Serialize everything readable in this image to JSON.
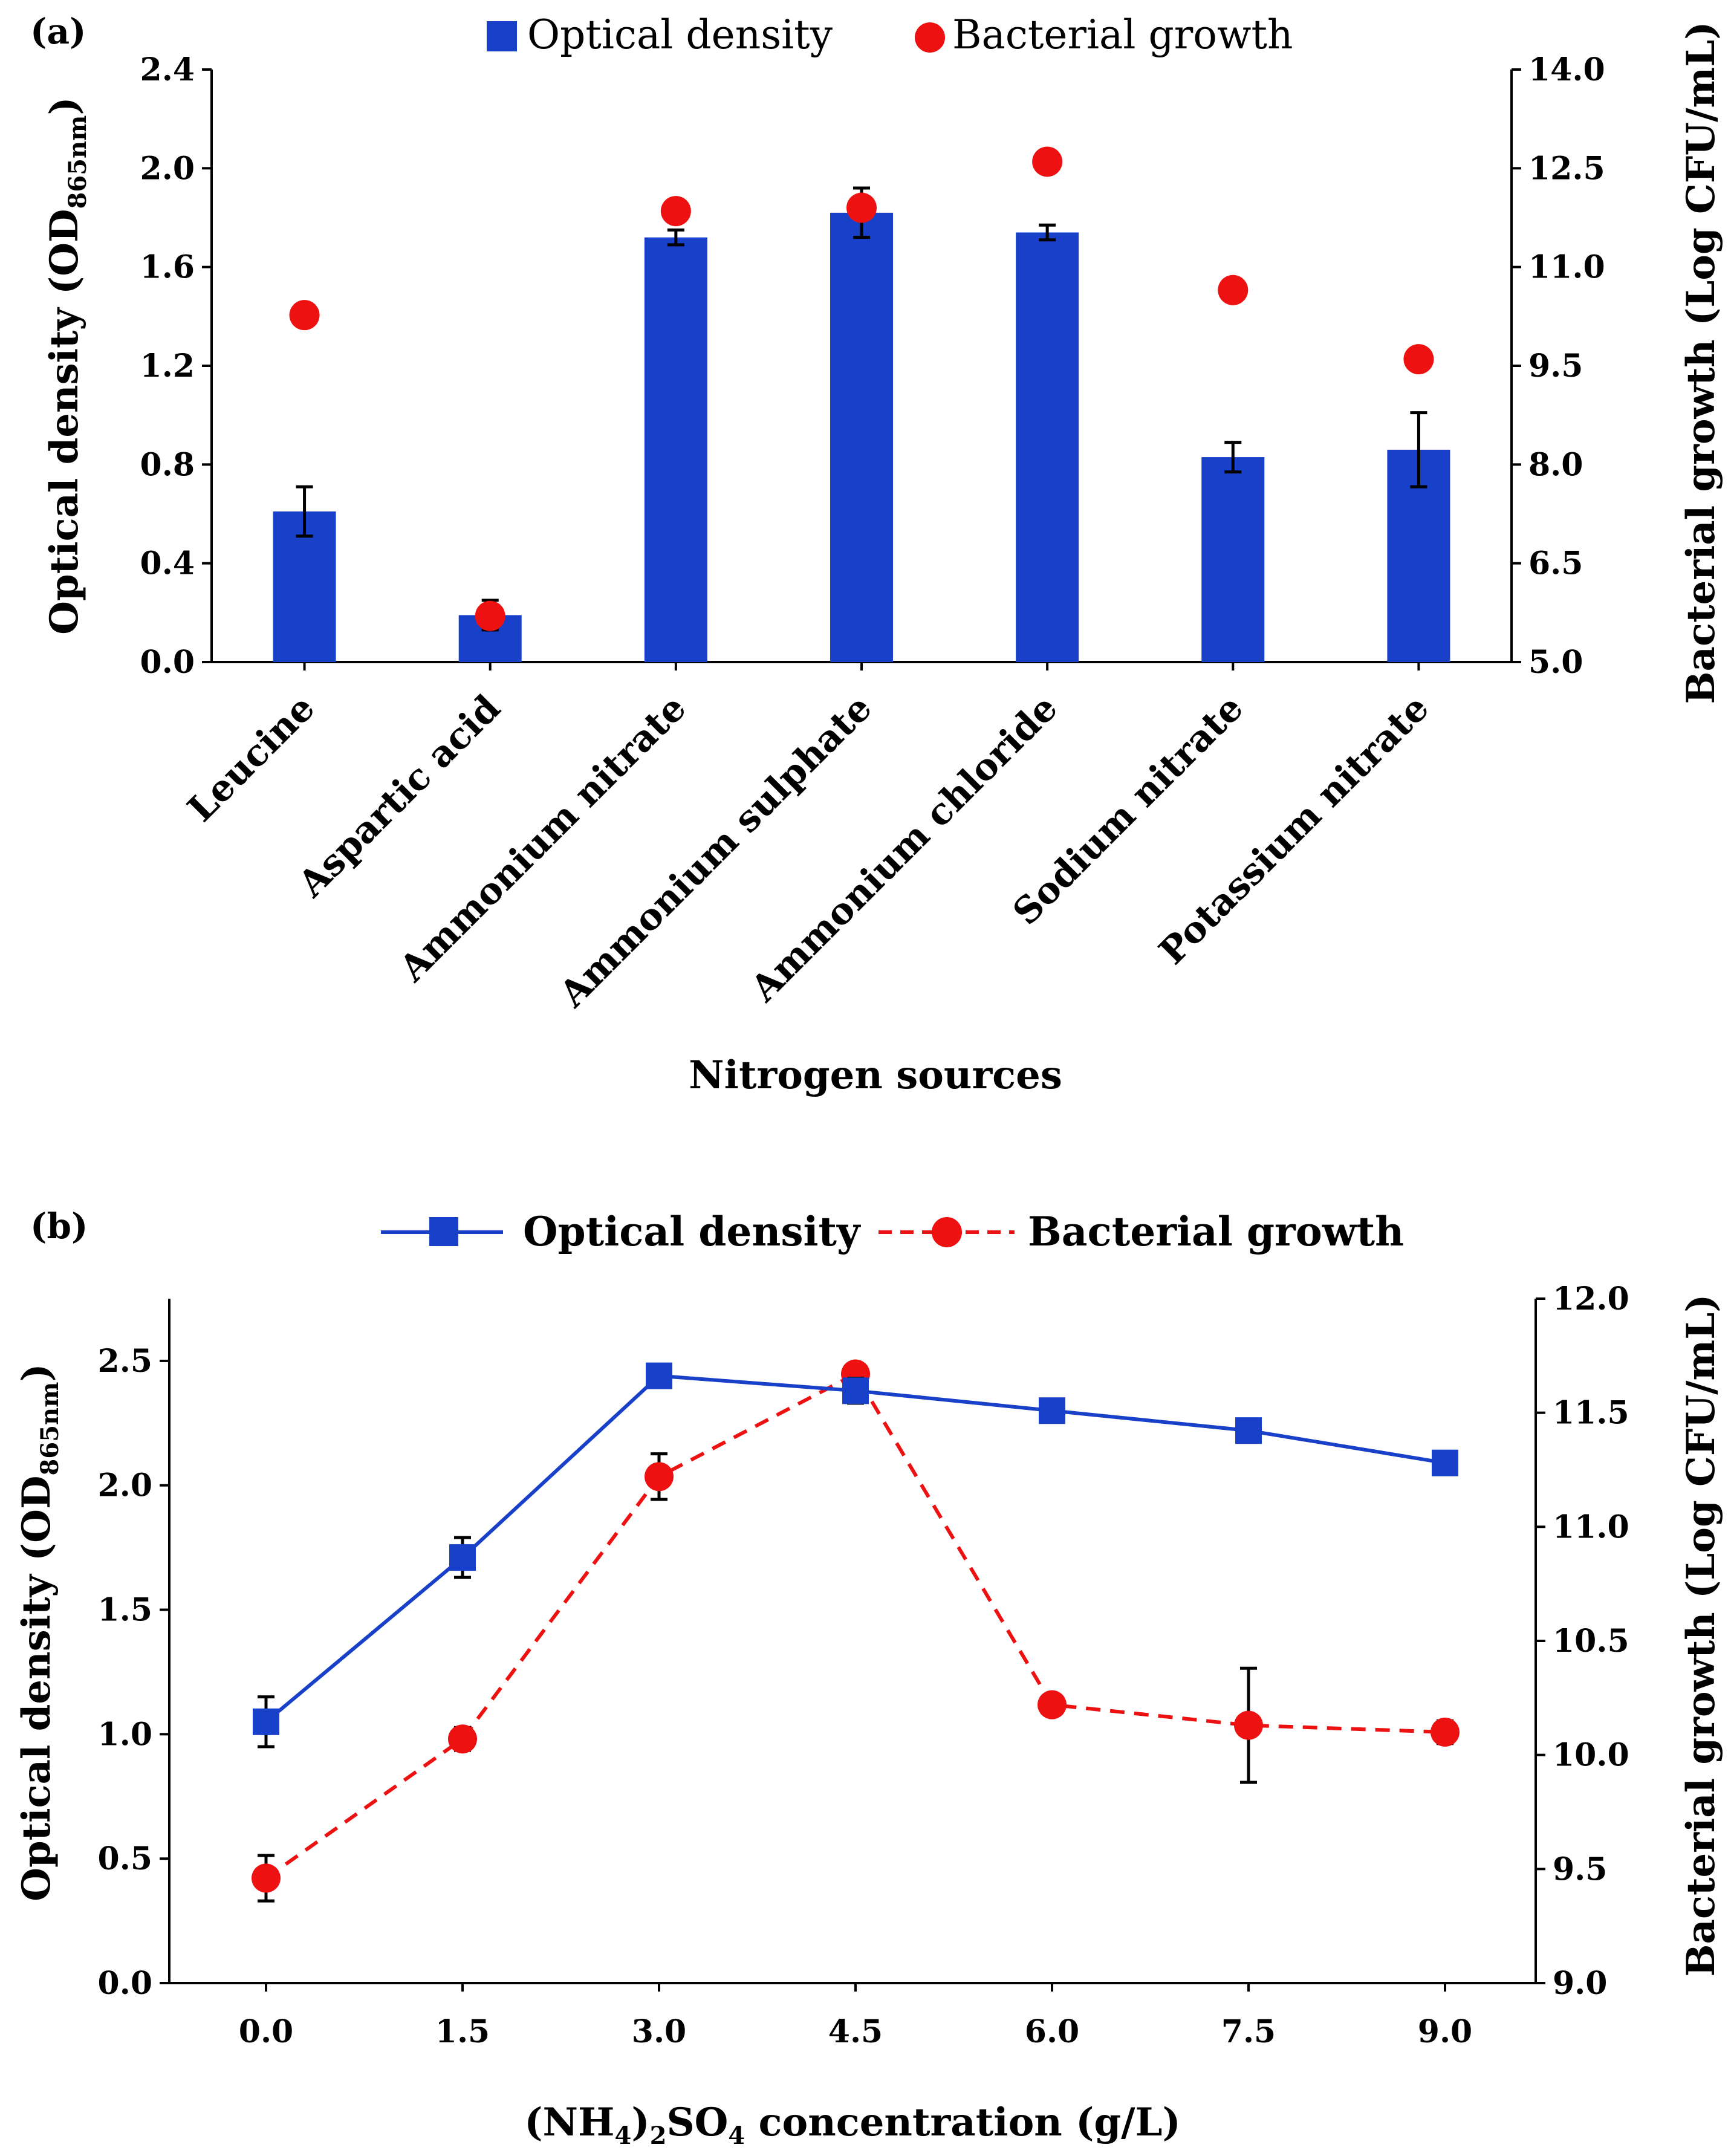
{
  "chart_data": [
    {
      "panel": "(a)",
      "type": "bar",
      "xlabel": "Nitrogen sources",
      "ylabel_main": "Optical density (OD",
      "ylabel_sub": "865nm",
      "ylabel_close": ")",
      "y2label": "Bacterial growth (Log CFU/mL)",
      "ylim": [
        0,
        2.4
      ],
      "yticks": [
        "0.0",
        "0.4",
        "0.8",
        "1.2",
        "1.6",
        "2.0",
        "2.4"
      ],
      "y2lim": [
        5.0,
        14.0
      ],
      "y2ticks": [
        "5.0",
        "6.5",
        "8.0",
        "9.5",
        "11.0",
        "12.5",
        "14.0"
      ],
      "legend": [
        "Optical density",
        "Bacterial growth"
      ],
      "categories": [
        "Leucine",
        "Aspartic acid",
        "Ammonium nitrate",
        "Ammonium sulphate",
        "Ammonium chloride",
        "Sodium nitrate",
        "Potassium nitrate"
      ],
      "series": [
        {
          "name": "Optical density",
          "axis": "left",
          "kind": "bar",
          "color": "#1840C8",
          "values": [
            0.61,
            0.19,
            1.72,
            1.82,
            1.74,
            0.83,
            0.86
          ],
          "errors": [
            0.1,
            0.06,
            0.03,
            0.1,
            0.03,
            0.06,
            0.15
          ]
        },
        {
          "name": "Bacterial growth",
          "axis": "right",
          "kind": "marker",
          "color": "#EE1111",
          "values": [
            10.27,
            5.7,
            11.85,
            11.9,
            12.6,
            10.65,
            9.6
          ],
          "errors": [
            0.0,
            0.0,
            0.0,
            0.0,
            0.0,
            0.0,
            0.0
          ]
        }
      ]
    },
    {
      "panel": "(b)",
      "type": "line",
      "xlabel_pre": "(NH",
      "xlabel_sub1": "4",
      "xlabel_mid": ")",
      "xlabel_sub2": "2",
      "xlabel_so": "SO",
      "xlabel_sub3": "4",
      "xlabel_post": " concentration (g/L)",
      "ylabel_main": "Optical density (OD",
      "ylabel_sub": "865nm",
      "ylabel_close": ")",
      "y2label": "Bacterial growth (Log CFU/mL)",
      "x": [
        0.0,
        1.5,
        3.0,
        4.5,
        6.0,
        7.5,
        9.0
      ],
      "xticks": [
        "0.0",
        "1.5",
        "3.0",
        "4.5",
        "6.0",
        "7.5",
        "9.0"
      ],
      "ylim": [
        0,
        2.75
      ],
      "yticks": [
        "0.0",
        "0.5",
        "1.0",
        "1.5",
        "2.0",
        "2.5"
      ],
      "y2lim": [
        9.0,
        12.0
      ],
      "y2ticks": [
        "9.0",
        "9.5",
        "10.0",
        "10.5",
        "11.0",
        "11.5",
        "12.0"
      ],
      "legend": [
        "Optical density",
        "Bacterial growth"
      ],
      "series": [
        {
          "name": "Optical density",
          "axis": "left",
          "style": "solid-square",
          "color": "#1840C8",
          "values": [
            1.05,
            1.71,
            2.44,
            2.38,
            2.3,
            2.22,
            2.09
          ],
          "errors": [
            0.1,
            0.08,
            0.0,
            0.05,
            0.0,
            0.0,
            0.0
          ]
        },
        {
          "name": "Bacterial growth",
          "axis": "right",
          "style": "dashed-circle",
          "color": "#EE1111",
          "values": [
            9.46,
            10.07,
            11.22,
            11.67,
            10.22,
            10.13,
            10.1
          ],
          "errors": [
            0.1,
            0.05,
            0.1,
            0.0,
            0.04,
            0.25,
            0.05
          ]
        }
      ]
    }
  ]
}
